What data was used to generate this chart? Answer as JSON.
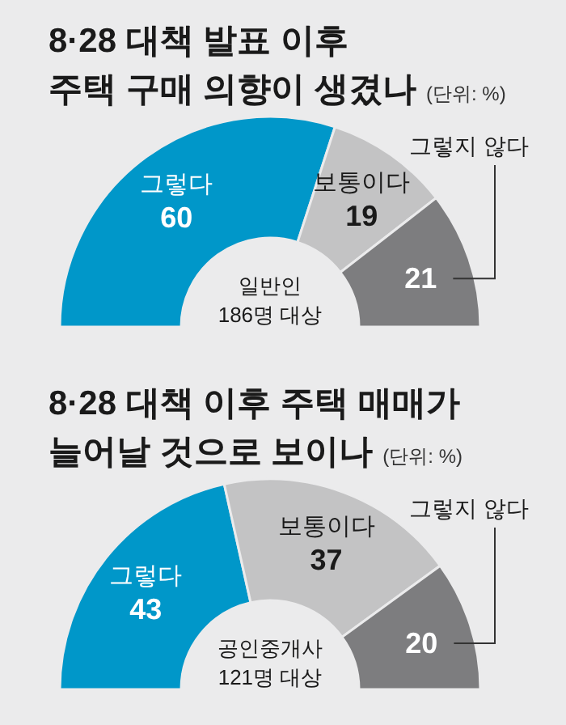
{
  "chart_data": [
    {
      "type": "donut",
      "title": "8·28 대책 발표 이후\n주택 구매 의향이 생겼나",
      "subtitle": "(단위: %)",
      "categories": [
        "그렇다",
        "보통이다",
        "그렇지 않다"
      ],
      "values": [
        60,
        19,
        21
      ],
      "colors": [
        "#0097c9",
        "#c3c3c4",
        "#7d7d7f"
      ],
      "data_labels": true,
      "annotations": [
        "일반인\n186명 대상"
      ]
    },
    {
      "type": "donut",
      "title": "8·28 대책 이후 주택 매매가\n늘어날 것으로 보이나",
      "subtitle": "(단위: %)",
      "categories": [
        "그렇다",
        "보통이다",
        "그렇지 않다"
      ],
      "values": [
        43,
        37,
        20
      ],
      "colors": [
        "#0097c9",
        "#c3c3c4",
        "#7d7d7f"
      ],
      "data_labels": true,
      "annotations": [
        "공인중개사\n121명 대상"
      ]
    }
  ]
}
